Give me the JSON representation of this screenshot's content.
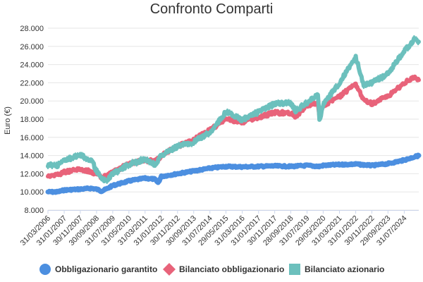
{
  "chart_data": {
    "type": "line",
    "title": "Confronto Comparti",
    "xlabel": "",
    "ylabel": "Euro (€)",
    "ylim": [
      8000,
      28000
    ],
    "yticks": [
      "8.000",
      "10.000",
      "12.000",
      "14.000",
      "16.000",
      "18.000",
      "20.000",
      "22.000",
      "24.000",
      "26.000",
      "28.000"
    ],
    "ytick_values": [
      8000,
      10000,
      12000,
      14000,
      16000,
      18000,
      20000,
      22000,
      24000,
      26000,
      28000
    ],
    "x_range": [
      "2006-03-31",
      "2025-04-30"
    ],
    "xticks": [
      {
        "label": "31/03/2006",
        "date": "2006-03-31"
      },
      {
        "label": "31/01/2007",
        "date": "2007-01-31"
      },
      {
        "label": "30/11/2007",
        "date": "2007-11-30"
      },
      {
        "label": "30/09/2008",
        "date": "2008-09-30"
      },
      {
        "label": "31/07/2009",
        "date": "2009-07-31"
      },
      {
        "label": "31/05/2010",
        "date": "2010-05-31"
      },
      {
        "label": "31/03/2011",
        "date": "2011-03-31"
      },
      {
        "label": "31/01/2012",
        "date": "2012-01-31"
      },
      {
        "label": "30/11/2012",
        "date": "2012-11-30"
      },
      {
        "label": "30/09/2013",
        "date": "2013-09-30"
      },
      {
        "label": "31/07/2014",
        "date": "2014-07-31"
      },
      {
        "label": "29/05/2015",
        "date": "2015-05-29"
      },
      {
        "label": "31/03/2016",
        "date": "2016-03-31"
      },
      {
        "label": "31/01/2017",
        "date": "2017-01-31"
      },
      {
        "label": "30/11/2017",
        "date": "2017-11-30"
      },
      {
        "label": "28/09/2018",
        "date": "2018-09-28"
      },
      {
        "label": "31/07/2019",
        "date": "2019-07-31"
      },
      {
        "label": "29/05/2020",
        "date": "2020-05-29"
      },
      {
        "label": "31/03/2021",
        "date": "2021-03-31"
      },
      {
        "label": "31/01/2022",
        "date": "2022-01-31"
      },
      {
        "label": "30/11/2022",
        "date": "2022-11-30"
      },
      {
        "label": "29/09/2023",
        "date": "2023-09-29"
      },
      {
        "label": "31/07/2024",
        "date": "2024-07-31"
      }
    ],
    "grid": true,
    "legend_position": "bottom",
    "series": [
      {
        "name": "Obbligazionario garantito",
        "color": "#4c8fe0",
        "marker": "circle",
        "points": [
          [
            "2006-03-31",
            10000
          ],
          [
            "2006-09-30",
            10000
          ],
          [
            "2007-01-31",
            10200
          ],
          [
            "2007-11-30",
            10300
          ],
          [
            "2008-06-30",
            10400
          ],
          [
            "2008-09-30",
            10300
          ],
          [
            "2008-12-31",
            10100
          ],
          [
            "2009-03-31",
            10300
          ],
          [
            "2009-07-31",
            10700
          ],
          [
            "2010-05-31",
            11200
          ],
          [
            "2011-03-31",
            11500
          ],
          [
            "2011-09-30",
            11400
          ],
          [
            "2011-11-30",
            11000
          ],
          [
            "2012-01-31",
            11700
          ],
          [
            "2012-11-30",
            12000
          ],
          [
            "2013-09-30",
            12300
          ],
          [
            "2014-07-31",
            12600
          ],
          [
            "2015-05-29",
            12800
          ],
          [
            "2016-03-31",
            12750
          ],
          [
            "2017-01-31",
            12800
          ],
          [
            "2017-11-30",
            12850
          ],
          [
            "2018-09-28",
            12800
          ],
          [
            "2019-07-31",
            12900
          ],
          [
            "2020-03-15",
            12800
          ],
          [
            "2020-05-29",
            12900
          ],
          [
            "2021-03-31",
            13000
          ],
          [
            "2022-01-31",
            13050
          ],
          [
            "2022-11-30",
            12900
          ],
          [
            "2023-09-29",
            13100
          ],
          [
            "2024-07-31",
            13500
          ],
          [
            "2025-04-30",
            14000
          ]
        ]
      },
      {
        "name": "Bilanciato obbligazionario",
        "color": "#e8637a",
        "marker": "diamond",
        "points": [
          [
            "2006-03-31",
            11800
          ],
          [
            "2006-09-30",
            11900
          ],
          [
            "2007-01-31",
            12200
          ],
          [
            "2007-11-30",
            12500
          ],
          [
            "2008-06-30",
            12200
          ],
          [
            "2008-09-30",
            12000
          ],
          [
            "2008-12-31",
            11500
          ],
          [
            "2009-03-31",
            11800
          ],
          [
            "2009-07-31",
            12100
          ],
          [
            "2010-05-31",
            13100
          ],
          [
            "2011-03-31",
            13500
          ],
          [
            "2011-09-30",
            13300
          ],
          [
            "2012-01-31",
            14000
          ],
          [
            "2012-11-30",
            15000
          ],
          [
            "2013-09-30",
            15700
          ],
          [
            "2014-07-31",
            16800
          ],
          [
            "2015-05-29",
            18000
          ],
          [
            "2016-03-31",
            17700
          ],
          [
            "2017-01-31",
            18200
          ],
          [
            "2017-11-30",
            18700
          ],
          [
            "2018-09-28",
            18700
          ],
          [
            "2018-12-31",
            18300
          ],
          [
            "2019-07-31",
            19500
          ],
          [
            "2020-02-20",
            19700
          ],
          [
            "2020-03-20",
            18200
          ],
          [
            "2020-05-29",
            19500
          ],
          [
            "2021-03-31",
            20500
          ],
          [
            "2022-01-31",
            21800
          ],
          [
            "2022-06-30",
            20200
          ],
          [
            "2022-11-30",
            19700
          ],
          [
            "2023-09-29",
            20500
          ],
          [
            "2024-07-31",
            22000
          ],
          [
            "2025-02-28",
            22600
          ],
          [
            "2025-04-30",
            22300
          ]
        ]
      },
      {
        "name": "Bilanciato azionario",
        "color": "#6cc0bd",
        "marker": "square",
        "points": [
          [
            "2006-03-31",
            13000
          ],
          [
            "2006-09-30",
            12900
          ],
          [
            "2007-01-31",
            13500
          ],
          [
            "2007-11-30",
            14000
          ],
          [
            "2008-06-30",
            13500
          ],
          [
            "2008-09-30",
            12300
          ],
          [
            "2008-12-31",
            11400
          ],
          [
            "2009-03-31",
            11200
          ],
          [
            "2009-07-31",
            12000
          ],
          [
            "2010-05-31",
            13000
          ],
          [
            "2011-03-31",
            13600
          ],
          [
            "2011-09-30",
            13000
          ],
          [
            "2012-01-31",
            14000
          ],
          [
            "2012-11-30",
            15000
          ],
          [
            "2013-09-30",
            15500
          ],
          [
            "2014-07-31",
            16500
          ],
          [
            "2015-05-29",
            18800
          ],
          [
            "2016-03-31",
            17900
          ],
          [
            "2017-01-31",
            18800
          ],
          [
            "2017-11-30",
            19700
          ],
          [
            "2018-09-28",
            19800
          ],
          [
            "2018-12-31",
            18900
          ],
          [
            "2019-07-31",
            19800
          ],
          [
            "2020-02-20",
            20800
          ],
          [
            "2020-03-20",
            17800
          ],
          [
            "2020-05-29",
            19600
          ],
          [
            "2021-03-31",
            22000
          ],
          [
            "2022-01-31",
            24800
          ],
          [
            "2022-06-30",
            21800
          ],
          [
            "2022-11-30",
            22000
          ],
          [
            "2023-09-29",
            23000
          ],
          [
            "2024-07-31",
            25500
          ],
          [
            "2025-02-28",
            26900
          ],
          [
            "2025-04-30",
            26500
          ]
        ]
      }
    ]
  }
}
